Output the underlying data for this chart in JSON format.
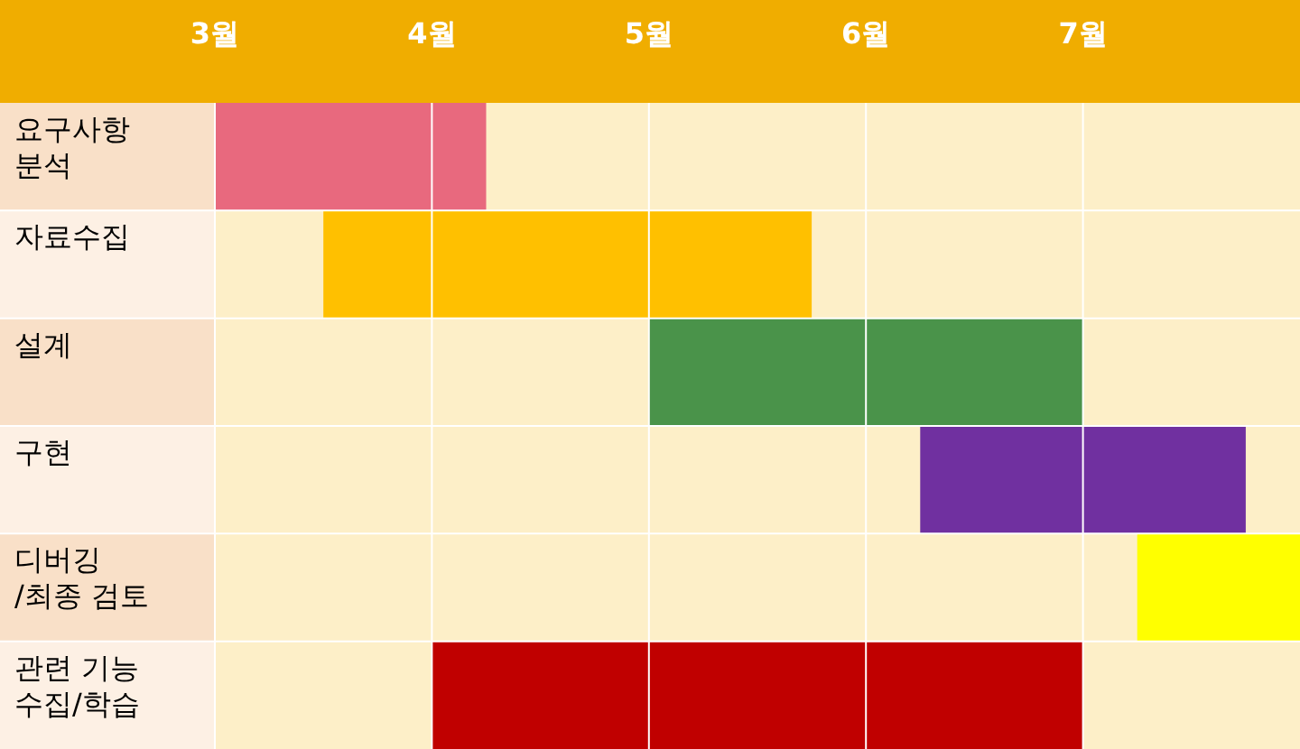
{
  "chart_data": {
    "type": "bar",
    "orientation": "horizontal",
    "categories": [
      "요구사항 분석",
      "자료수집",
      "설계",
      "구현",
      "디버깅 /최종 검토",
      "관련 기능 수집/학습"
    ],
    "base": [
      3,
      3.5,
      5,
      6.25,
      7.25,
      4
    ],
    "values": [
      1.25,
      2.25,
      2,
      1.5,
      0.75,
      3
    ],
    "colors": [
      "#e8697e",
      "#ffc000",
      "#4a934a",
      "#7030a0",
      "#ffff00",
      "#c00000"
    ],
    "xlim": [
      3,
      8
    ],
    "xticks": [
      {
        "value": 3,
        "label": "3월"
      },
      {
        "value": 4,
        "label": "4월"
      },
      {
        "value": 5,
        "label": "5월"
      },
      {
        "value": 6,
        "label": "6월"
      },
      {
        "value": 7,
        "label": "7월"
      }
    ],
    "grid": "x"
  }
}
